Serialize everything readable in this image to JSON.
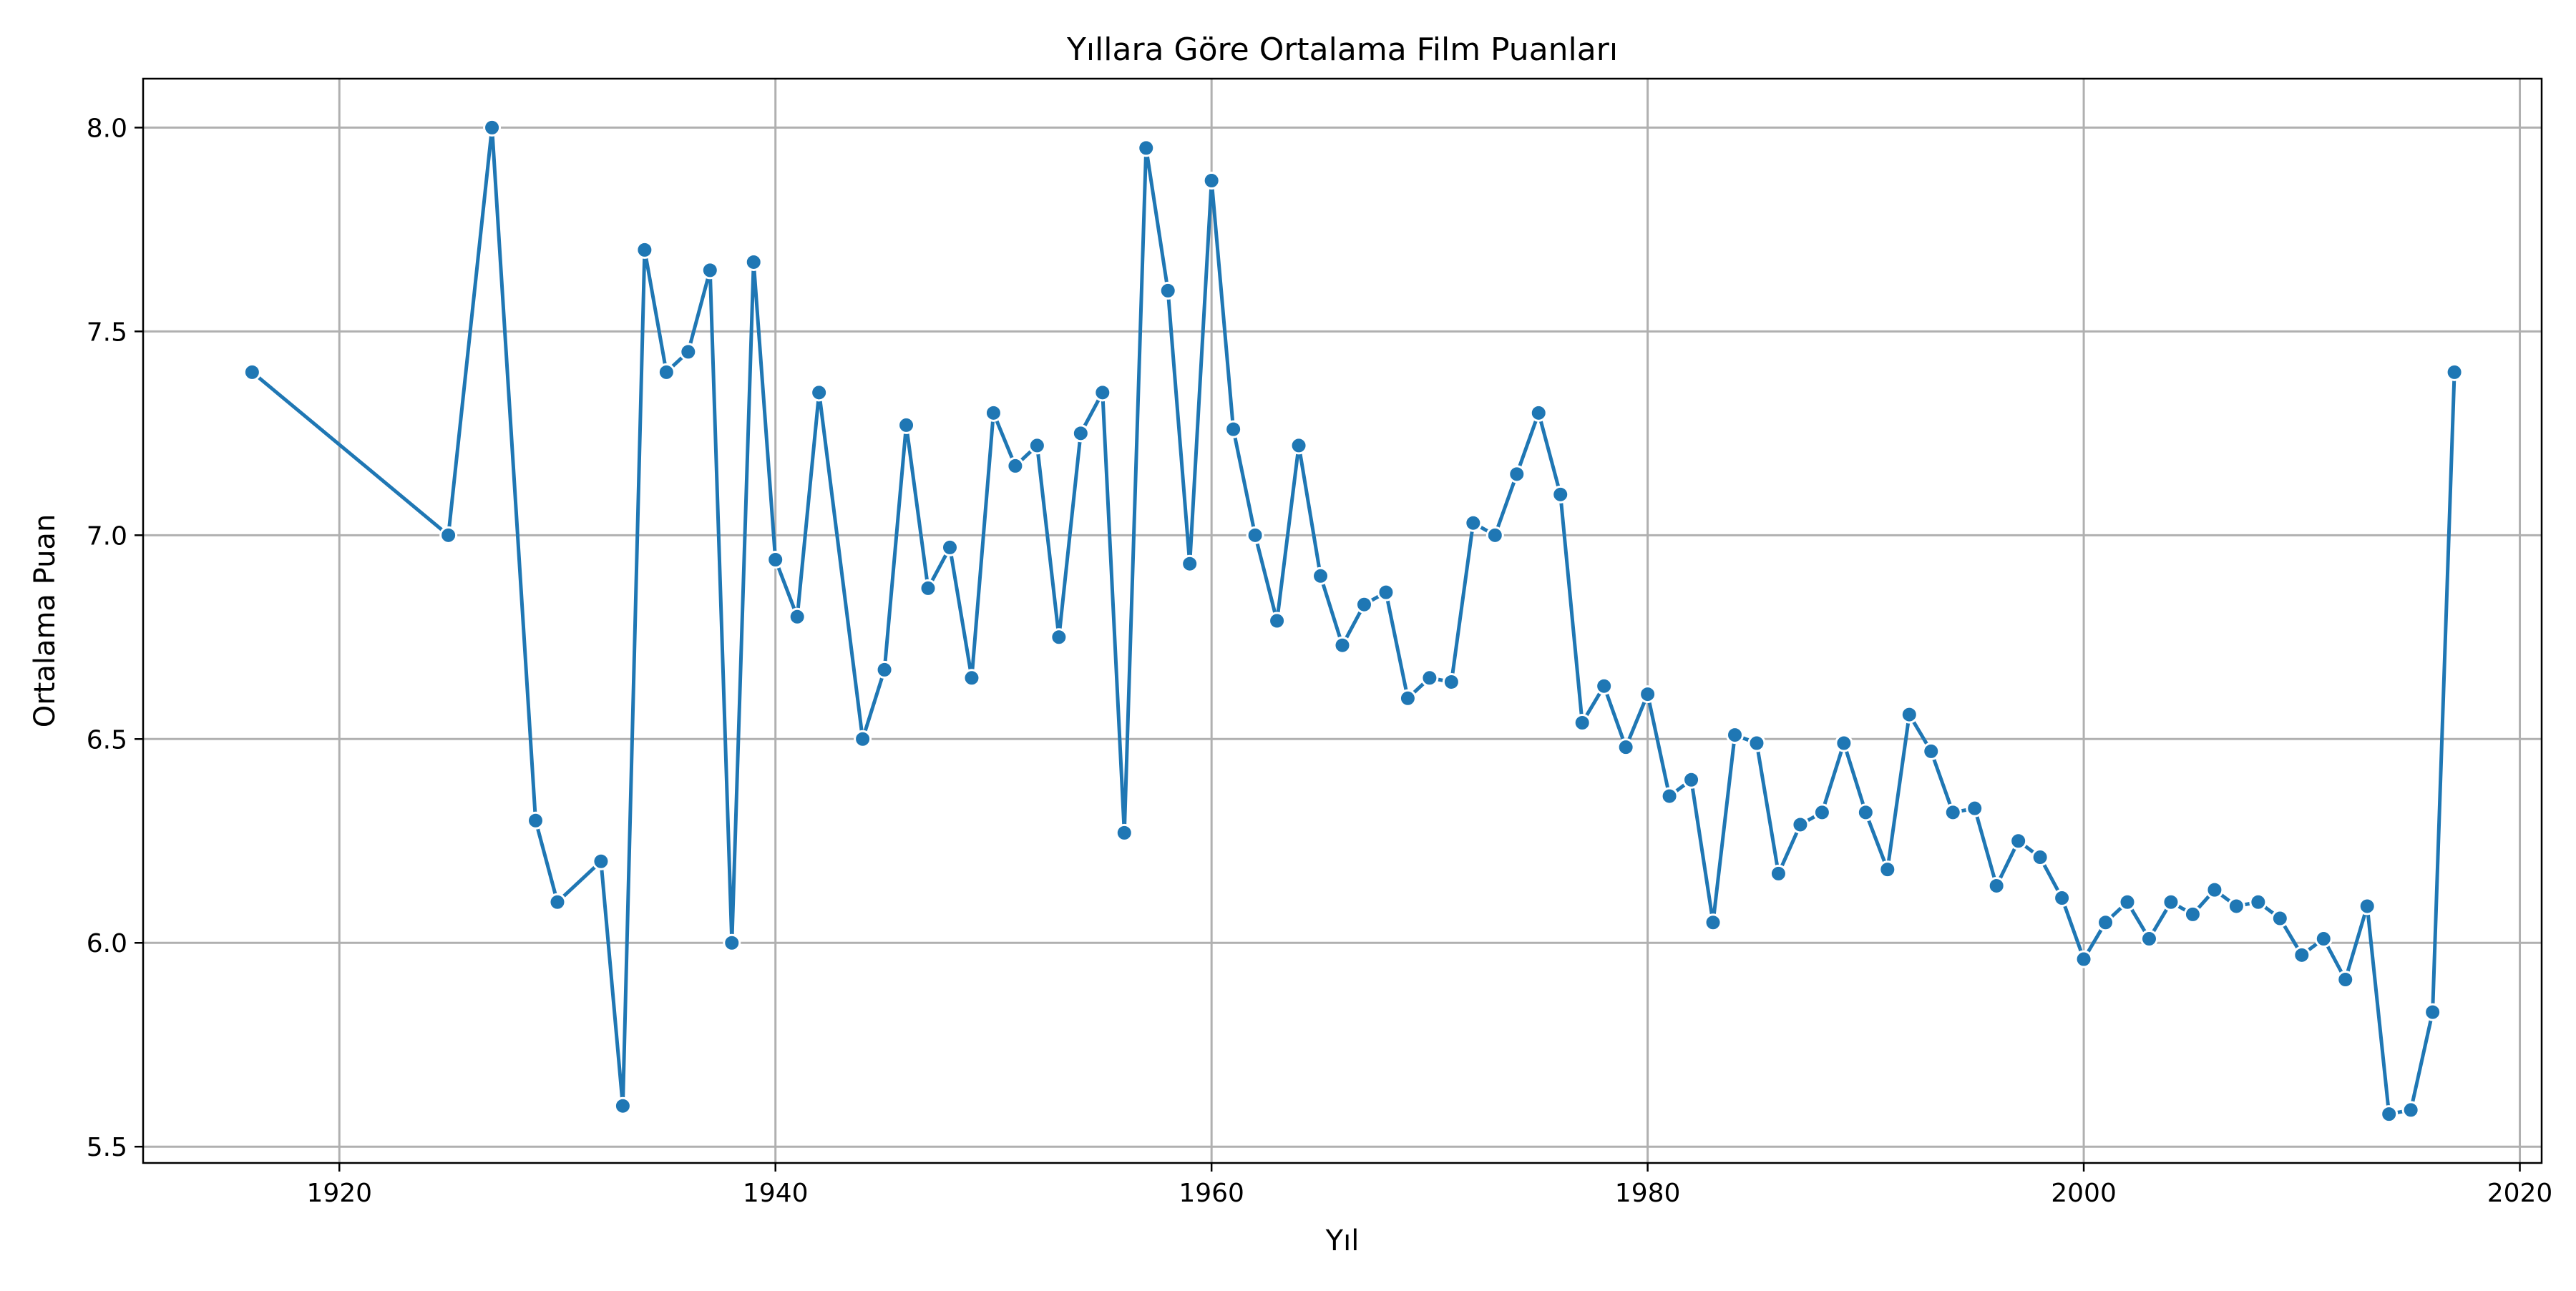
{
  "chart_data": {
    "type": "line",
    "title": "Yıllara Göre Ortalama Film Puanları",
    "xlabel": "Yıl",
    "ylabel": "Ortalama Puan",
    "xlim": [
      1911,
      2021
    ],
    "ylim": [
      5.46,
      8.12
    ],
    "xticks": [
      1920,
      1940,
      1960,
      1980,
      2000,
      2020
    ],
    "xtick_labels": [
      "1920",
      "1940",
      "1960",
      "1980",
      "2000",
      "2020"
    ],
    "yticks": [
      5.5,
      6.0,
      6.5,
      7.0,
      7.5,
      8.0
    ],
    "ytick_labels": [
      "5.5",
      "6.0",
      "6.5",
      "7.0",
      "7.5",
      "8.0"
    ],
    "grid": true,
    "color": "#1f77b4",
    "marker": "circle",
    "x": [
      1916,
      1925,
      1927,
      1929,
      1930,
      1932,
      1933,
      1934,
      1935,
      1936,
      1937,
      1938,
      1939,
      1940,
      1941,
      1942,
      1944,
      1945,
      1946,
      1947,
      1948,
      1949,
      1950,
      1951,
      1952,
      1953,
      1954,
      1955,
      1956,
      1957,
      1958,
      1959,
      1960,
      1961,
      1962,
      1963,
      1964,
      1965,
      1966,
      1967,
      1968,
      1969,
      1970,
      1971,
      1972,
      1973,
      1974,
      1975,
      1976,
      1977,
      1978,
      1979,
      1980,
      1981,
      1982,
      1983,
      1984,
      1985,
      1986,
      1987,
      1988,
      1989,
      1990,
      1991,
      1992,
      1993,
      1994,
      1995,
      1996,
      1997,
      1998,
      1999,
      2000,
      2001,
      2002,
      2003,
      2004,
      2005,
      2006,
      2007,
      2008,
      2009,
      2010,
      2011,
      2012,
      2013,
      2014,
      2015,
      2016,
      2017
    ],
    "y": [
      7.4,
      7.0,
      8.0,
      6.3,
      6.1,
      6.2,
      5.6,
      7.7,
      7.4,
      7.45,
      7.65,
      6.0,
      7.67,
      6.94,
      6.8,
      7.35,
      6.5,
      6.67,
      7.27,
      6.87,
      6.97,
      6.65,
      7.3,
      7.17,
      7.22,
      6.75,
      7.25,
      7.35,
      6.27,
      7.95,
      7.6,
      6.93,
      7.87,
      7.26,
      7.0,
      6.79,
      7.22,
      6.9,
      6.73,
      6.83,
      6.86,
      6.6,
      6.65,
      6.64,
      7.03,
      7.0,
      7.15,
      7.3,
      7.1,
      6.54,
      6.63,
      6.48,
      6.61,
      6.36,
      6.4,
      6.05,
      6.51,
      6.49,
      6.17,
      6.29,
      6.32,
      6.49,
      6.32,
      6.18,
      6.56,
      6.47,
      6.32,
      6.33,
      6.14,
      6.25,
      6.21,
      6.11,
      5.96,
      6.05,
      6.1,
      6.01,
      6.1,
      6.07,
      6.13,
      6.09,
      6.1,
      6.06,
      5.97,
      6.01,
      5.91,
      6.09,
      5.58,
      5.59,
      5.83,
      7.4
    ]
  }
}
